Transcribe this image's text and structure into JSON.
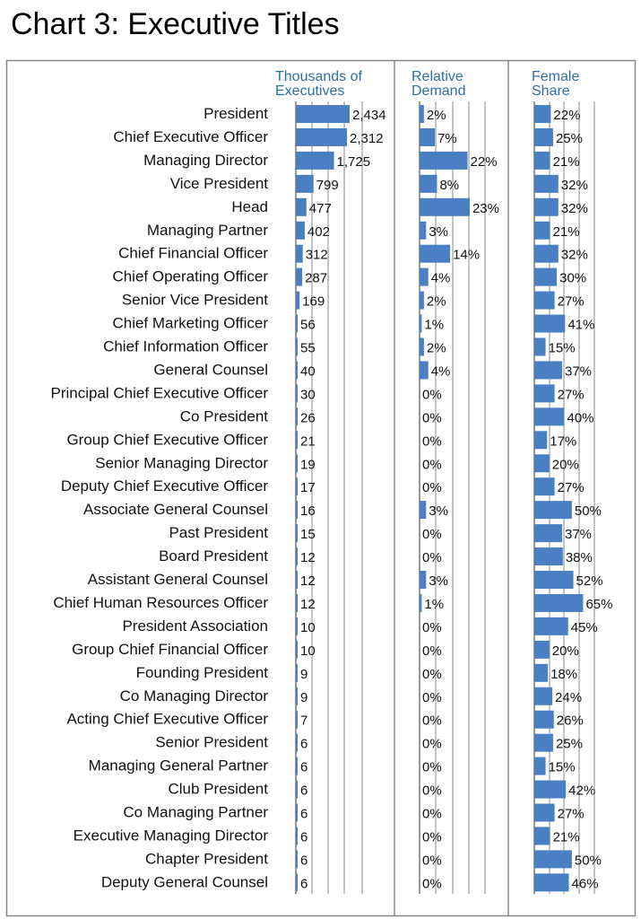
{
  "title": "Chart 3: Executive Titles",
  "colors": {
    "bar": "#4a7fc4",
    "header": "#2e6fa6",
    "grid": "#8a8a8a",
    "frame": "#888888"
  },
  "chart_data": {
    "type": "bar",
    "orientation": "horizontal",
    "title": "Chart 3: Executive Titles",
    "categories": [
      "President",
      "Chief Executive Officer",
      "Managing Director",
      "Vice President",
      "Head",
      "Managing Partner",
      "Chief Financial Officer",
      "Chief Operating Officer",
      "Senior Vice President",
      "Chief Marketing Officer",
      "Chief Information Officer",
      "General Counsel",
      "Principal Chief Executive Officer",
      "Co President",
      "Group Chief Executive Officer",
      "Senior Managing Director",
      "Deputy Chief Executive Officer",
      "Associate General Counsel",
      "Past President",
      "Board President",
      "Assistant General Counsel",
      "Chief Human Resources Officer",
      "President Association",
      "Group Chief Financial Officer",
      "Founding President",
      "Co Managing Director",
      "Acting Chief Executive Officer",
      "Senior President",
      "Managing General Partner",
      "Club President",
      "Co Managing Partner",
      "Executive Managing Director",
      "Chapter President",
      "Deputy General Counsel"
    ],
    "series": [
      {
        "name": "Thousands of Executives",
        "values": [
          2434,
          2312,
          1725,
          799,
          477,
          402,
          312,
          287,
          169,
          56,
          55,
          40,
          30,
          26,
          21,
          19,
          17,
          16,
          15,
          12,
          12,
          12,
          10,
          10,
          9,
          9,
          7,
          6,
          6,
          6,
          6,
          6,
          6,
          6
        ],
        "labels": [
          "2,434",
          "2,312",
          "1,725",
          "799",
          "477",
          "402",
          "312",
          "287",
          "169",
          "56",
          "55",
          "40",
          "30",
          "26",
          "21",
          "19",
          "17",
          "16",
          "15",
          "12",
          "12",
          "12",
          "10",
          "10",
          "9",
          "9",
          "7",
          "6",
          "6",
          "6",
          "6",
          "6",
          "6",
          "6"
        ],
        "xlim": [
          0,
          3000
        ]
      },
      {
        "name": "Relative Demand",
        "values": [
          2,
          7,
          22,
          8,
          23,
          3,
          14,
          4,
          2,
          1,
          2,
          4,
          0,
          0,
          0,
          0,
          0,
          3,
          0,
          0,
          3,
          1,
          0,
          0,
          0,
          0,
          0,
          0,
          0,
          0,
          0,
          0,
          0,
          0
        ],
        "labels": [
          "2%",
          "7%",
          "22%",
          "8%",
          "23%",
          "3%",
          "14%",
          "4%",
          "2%",
          "1%",
          "2%",
          "4%",
          "0%",
          "0%",
          "0%",
          "0%",
          "0%",
          "3%",
          "0%",
          "0%",
          "3%",
          "1%",
          "0%",
          "0%",
          "0%",
          "0%",
          "0%",
          "0%",
          "0%",
          "0%",
          "0%",
          "0%",
          "0%",
          "0%"
        ],
        "xlim": [
          0,
          30
        ]
      },
      {
        "name": "Female Share",
        "values": [
          22,
          25,
          21,
          32,
          32,
          21,
          32,
          30,
          27,
          41,
          15,
          37,
          27,
          40,
          17,
          20,
          27,
          50,
          37,
          38,
          52,
          65,
          45,
          20,
          18,
          24,
          26,
          25,
          15,
          42,
          27,
          21,
          50,
          46
        ],
        "labels": [
          "22%",
          "25%",
          "21%",
          "32%",
          "32%",
          "21%",
          "32%",
          "30%",
          "27%",
          "41%",
          "15%",
          "37%",
          "27%",
          "40%",
          "17%",
          "20%",
          "27%",
          "50%",
          "37%",
          "38%",
          "52%",
          "65%",
          "45%",
          "20%",
          "18%",
          "24%",
          "26%",
          "25%",
          "15%",
          "42%",
          "27%",
          "21%",
          "50%",
          "46%"
        ],
        "xlim": [
          0,
          80
        ]
      }
    ],
    "panel_headers": [
      [
        "Thousands of",
        "Executives"
      ],
      [
        "Relative",
        "Demand"
      ],
      [
        "Female",
        "Share"
      ]
    ],
    "grid": true
  }
}
